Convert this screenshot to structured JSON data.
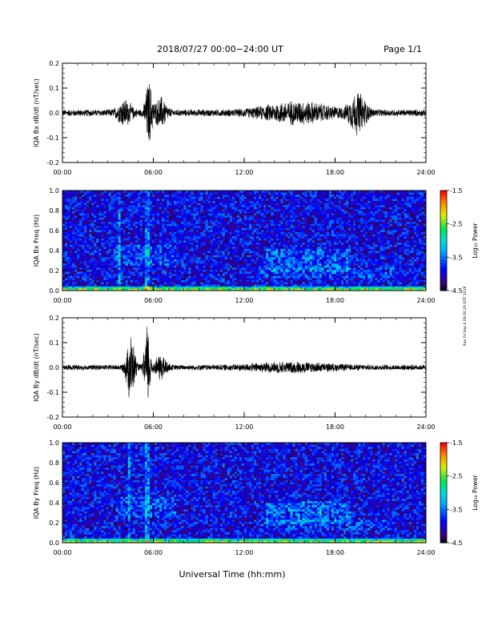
{
  "header": {
    "title": "2018/07/27  00:00−24:00 UT",
    "page": "Page 1/1"
  },
  "footer": {
    "xlabel": "Universal Time (hh:mm)",
    "side_note": "Ran Fri Sep 4 09:00:29 EDT 2019"
  },
  "colorbar": {
    "label": "Log₁₀ Power",
    "ticks": [
      "-1.5",
      "-2.5",
      "-3.5",
      "-4.5"
    ],
    "range": [
      -4.5,
      -1.5
    ]
  },
  "chart_data": [
    {
      "type": "line",
      "ylabel": "IQA Bx dB/dt (nT/sec)",
      "x_range_hours": [
        0,
        24
      ],
      "xticks": [
        "00:00",
        "06:00",
        "12:00",
        "18:00",
        "24:00"
      ],
      "ylim": [
        -0.2,
        0.2
      ],
      "yticks": [
        "0.2",
        "0.1",
        "0.0",
        "-0.1",
        "-0.2"
      ],
      "base_amplitude": 0.015,
      "bursts": [
        {
          "hour": 4.1,
          "amp": 0.05,
          "width": 0.5
        },
        {
          "hour": 5.7,
          "amp": 0.13,
          "width": 0.25
        },
        {
          "hour": 6.5,
          "amp": 0.06,
          "width": 0.4
        },
        {
          "hour": 15.5,
          "amp": 0.04,
          "width": 2.5
        },
        {
          "hour": 19.5,
          "amp": 0.08,
          "width": 0.6
        }
      ]
    },
    {
      "type": "heatmap",
      "ylabel": "IQA Bx Freq (Hz)",
      "x_range_hours": [
        0,
        24
      ],
      "xticks": [
        "00:00",
        "06:00",
        "12:00",
        "18:00",
        "24:00"
      ],
      "ylim": [
        0.0,
        1.0
      ],
      "yticks": [
        "1.0",
        "0.8",
        "0.6",
        "0.4",
        "0.2",
        "0.0"
      ],
      "color_range": [
        -4.5,
        -1.5
      ]
    },
    {
      "type": "line",
      "ylabel": "IQA By dB/dt (nT/sec)",
      "x_range_hours": [
        0,
        24
      ],
      "xticks": [
        "00:00",
        "06:00",
        "12:00",
        "18:00",
        "24:00"
      ],
      "ylim": [
        -0.2,
        0.2
      ],
      "yticks": [
        "0.2",
        "0.1",
        "0.0",
        "-0.1",
        "-0.2"
      ],
      "base_amplitude": 0.012,
      "bursts": [
        {
          "hour": 4.5,
          "amp": 0.14,
          "width": 0.3
        },
        {
          "hour": 5.6,
          "amp": 0.19,
          "width": 0.2
        },
        {
          "hour": 6.5,
          "amp": 0.05,
          "width": 0.4
        },
        {
          "hour": 15.0,
          "amp": 0.015,
          "width": 3.0
        }
      ]
    },
    {
      "type": "heatmap",
      "ylabel": "IQA By Freq (Hz)",
      "x_range_hours": [
        0,
        24
      ],
      "xticks": [
        "00:00",
        "06:00",
        "12:00",
        "18:00",
        "24:00"
      ],
      "ylim": [
        0.0,
        1.0
      ],
      "yticks": [
        "1.0",
        "0.8",
        "0.6",
        "0.4",
        "0.2",
        "0.0"
      ],
      "color_range": [
        -4.5,
        -1.5
      ]
    }
  ]
}
